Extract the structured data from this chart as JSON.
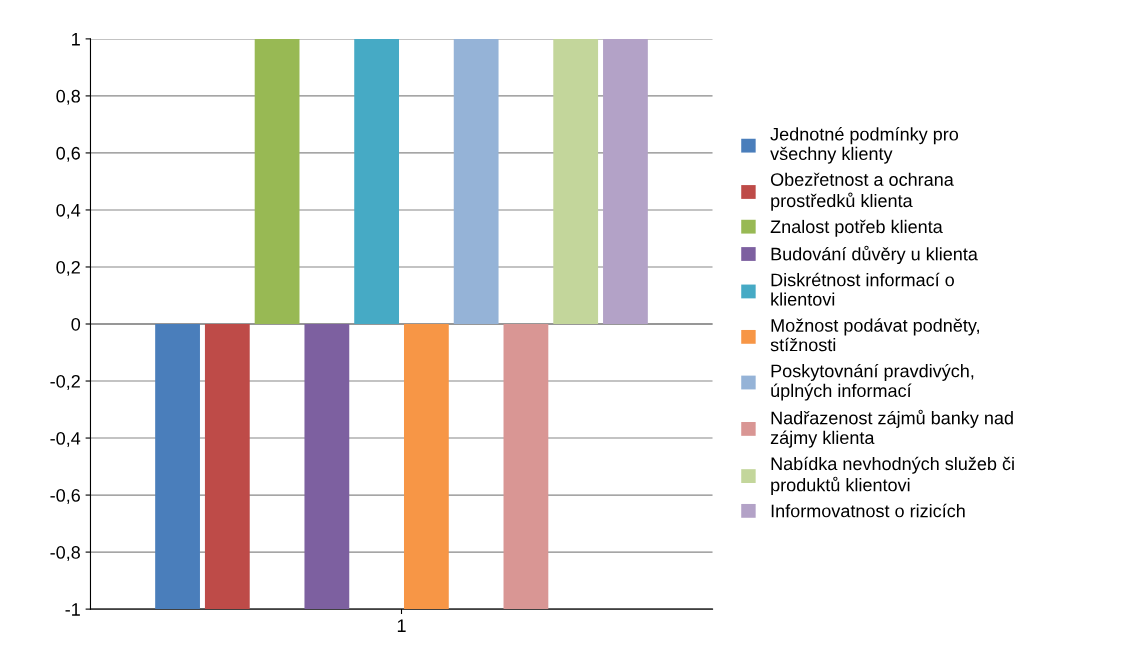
{
  "chart_data": {
    "type": "bar",
    "categories": [
      "1"
    ],
    "series": [
      {
        "name": "Jednotné podmínky pro všechny klienty",
        "color": "#4a7ebb",
        "values": [
          -1
        ]
      },
      {
        "name": "Obezřetnost a ochrana prostředků klienta",
        "color": "#be4b48",
        "values": [
          -1
        ]
      },
      {
        "name": "Znalost potřeb klienta",
        "color": "#98b954",
        "values": [
          1
        ]
      },
      {
        "name": "Budování důvěry u klienta",
        "color": "#7d60a0",
        "values": [
          -1
        ]
      },
      {
        "name": "Diskrétnost informací o klientovi",
        "color": "#46aac5",
        "values": [
          1
        ]
      },
      {
        "name": "Možnost podávat podněty, stížnosti",
        "color": "#f79646",
        "values": [
          -1
        ]
      },
      {
        "name": "Poskytovnání pravdivých, úplných informací",
        "color": "#95b3d7",
        "values": [
          1
        ]
      },
      {
        "name": "Nadřazenost zájmů banky nad zájmy klienta",
        "color": "#d99694",
        "values": [
          -1
        ]
      },
      {
        "name": "Nabídka nevhodných služeb či produktů klientovi",
        "color": "#c3d69b",
        "values": [
          1
        ]
      },
      {
        "name": "Informovatnost o rizicích",
        "color": "#b3a2c7",
        "values": [
          1
        ]
      }
    ],
    "ylim": [
      -1,
      1
    ],
    "yticks": [
      -1,
      {
        "value": -0.8,
        "label": "-0,8"
      },
      {
        "value": -0.6,
        "label": "-0,6"
      },
      {
        "value": -0.4,
        "label": "-0,4"
      },
      {
        "value": -0.2,
        "label": "-0,2"
      },
      0,
      {
        "value": 0.2,
        "label": "0,2"
      },
      {
        "value": 0.4,
        "label": "0,4"
      },
      {
        "value": 0.6,
        "label": "0,6"
      },
      {
        "value": 0.8,
        "label": "0,8"
      },
      1
    ],
    "grid": "y",
    "legend": "right"
  }
}
